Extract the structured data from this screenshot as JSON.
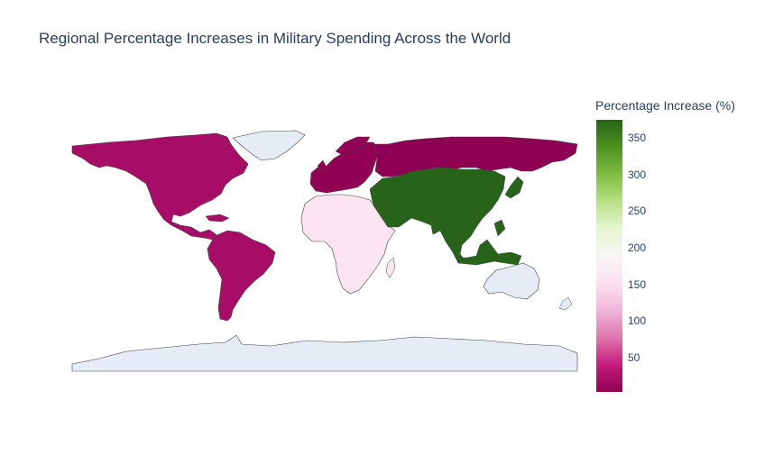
{
  "title": "Regional Percentage Increases in Military Spending Across the World",
  "colorbar": {
    "title": "Percentage Increase (%)",
    "range": [
      3,
      375
    ],
    "ticks": [
      "50",
      "100",
      "150",
      "200",
      "250",
      "300",
      "350"
    ],
    "colorscale": [
      "#8e0152",
      "#c51b7d",
      "#de77ae",
      "#f1b6da",
      "#fde0ef",
      "#f7f7f7",
      "#e6f5d0",
      "#b8e186",
      "#7fbc41",
      "#4d9221",
      "#276419"
    ]
  },
  "chart_data": {
    "type": "choropleth",
    "projection": "equirectangular",
    "no_data_color": "#e5ecf6",
    "regions": [
      {
        "region": "North America",
        "value": 20
      },
      {
        "region": "South America",
        "value": 20
      },
      {
        "region": "Europe",
        "value": 5
      },
      {
        "region": "Russia",
        "value": 3
      },
      {
        "region": "Africa",
        "value": 160
      },
      {
        "region": "Asia",
        "value": 375
      }
    ]
  }
}
